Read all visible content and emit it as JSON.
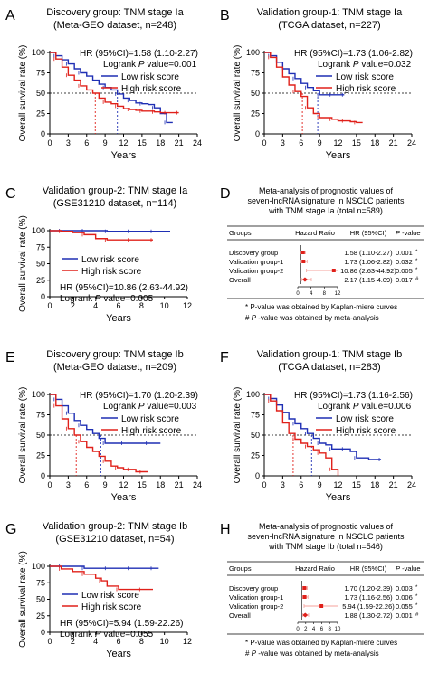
{
  "colors": {
    "low": "#1f2fb4",
    "high": "#e0201a",
    "ci": "#f4a09b",
    "ref": "#000000"
  },
  "panels": [
    {
      "letter": "A",
      "title1": "Discovery group: TNM stage Ia",
      "title2": "(Meta-GEO dataset, n=248)",
      "hr_line": "HR (95%CI)=1.58 (1.10-2.27)",
      "logrank_pre": "Logrank",
      "logrank_p": "P",
      "logrank_post": "value=0.001",
      "legend_low": "Low risk score",
      "legend_high": "High risk score"
    },
    {
      "letter": "B",
      "title1": "Validation group-1: TNM stage Ia",
      "title2": "(TCGA dataset, n=227)",
      "hr_line": "HR (95%CI)=1.73 (1.06-2.82)",
      "logrank_pre": "Logrank",
      "logrank_p": "P",
      "logrank_post": "value=0.032",
      "legend_low": "Low risk score",
      "legend_high": "High risk score"
    },
    {
      "letter": "C",
      "title1": "Validation group-2: TNM stage Ia",
      "title2": "(GSE31210 dataset, n=114)",
      "hr_line": "HR (95%CI)=10.86 (2.63-44.92)",
      "logrank_pre": "Logrank",
      "logrank_p": "P",
      "logrank_post": "value=0.005",
      "legend_low": "Low risk score",
      "legend_high": "High risk score"
    },
    {
      "letter": "E",
      "title1": "Discovery group: TNM stage Ib",
      "title2": "(Meta-GEO dataset, n=209)",
      "hr_line": "HR (95%CI)=1.70 (1.20-2.39)",
      "logrank_pre": "Logrank",
      "logrank_p": "P",
      "logrank_post": "value=0.003",
      "legend_low": "Low risk score",
      "legend_high": "High risk score"
    },
    {
      "letter": "F",
      "title1": "Validation group-1: TNM stage Ib",
      "title2": "(TCGA dataset, n=283)",
      "hr_line": "HR (95%CI)=1.73 (1.16-2.56)",
      "logrank_pre": "Logrank",
      "logrank_p": "P",
      "logrank_post": "value=0.006",
      "legend_low": "Low risk score",
      "legend_high": "High risk score"
    },
    {
      "letter": "G",
      "title1": "Validation group-2: TNM stage Ib",
      "title2": "(GSE31210 dataset, n=54)",
      "hr_line": "HR (95%CI)=5.94 (1.59-22.26)",
      "logrank_pre": "Logrank",
      "logrank_p": "P",
      "logrank_post": "value=0.055",
      "legend_low": "Low risk score",
      "legend_high": "High risk score"
    }
  ],
  "forest": [
    {
      "letter": "D",
      "title1": "Meta-analysis of prognostic values of",
      "title2": "seven-lncRNA signature in NSCLC patients",
      "title3": "with TNM stage Ia (total n=589)",
      "col_groups": "Groups",
      "col_hr_plot": "Hazard Ratio",
      "col_hr": "HR (95%CI)",
      "col_p_italic": "P",
      "col_p_rest": "-value",
      "rows": [
        {
          "group": "Discovery group",
          "hr_text": "1.58 (1.10-2.27)",
          "p": "0.001",
          "mark": "*"
        },
        {
          "group": "Validation group-1",
          "hr_text": "1.73 (1.06-2.82)",
          "p": "0.032",
          "mark": "*"
        },
        {
          "group": "Validation group-2",
          "hr_text": "10.86 (2.63-44.92)",
          "p": "0.005",
          "mark": "*"
        },
        {
          "group": "Overall",
          "hr_text": "2.17 (1.15-4.09)",
          "p": "0.017",
          "mark": "#"
        }
      ],
      "note1": "* P-value was obtained by Kaplan-miere curves",
      "note2_mark": "#",
      "note2_p": "P",
      "note2_rest": "-value was obtained by meta-analysis"
    },
    {
      "letter": "H",
      "title1": "Meta-analysis of prognostic values of",
      "title2": "seven-lncRNA signature in NSCLC patients",
      "title3": "with TNM stage Ib (total n=546)",
      "col_groups": "Groups",
      "col_hr_plot": "Hazard Ratio",
      "col_hr": "HR (95%CI)",
      "col_p_italic": "P",
      "col_p_rest": "-value",
      "rows": [
        {
          "group": "Discovery group",
          "hr_text": "1.70 (1.20-2.39)",
          "p": "0.003",
          "mark": "*"
        },
        {
          "group": "Validation group-1",
          "hr_text": "1.73 (1.16-2.56)",
          "p": "0.006",
          "mark": "*"
        },
        {
          "group": "Validation group-2",
          "hr_text": "5.94 (1.59-22.26)",
          "p": "0.055",
          "mark": "*"
        },
        {
          "group": "Overall",
          "hr_text": "1.88 (1.30-2.72)",
          "p": "0.001",
          "mark": "#"
        }
      ],
      "note1": "* P-value was obtained by Kaplan-miere curves",
      "note2_mark": "#",
      "note2_p": "P",
      "note2_rest": "-value was obtained by meta-analysis"
    }
  ],
  "chart_data": [
    {
      "panel": "A",
      "type": "line",
      "title": "Discovery group: TNM stage Ia (Meta-GEO dataset, n=248)",
      "xlabel": "Years",
      "ylabel": "Overall survival rate (%)",
      "xlim": [
        0,
        24
      ],
      "ylim": [
        0,
        100
      ],
      "xticks": [
        0,
        3,
        6,
        9,
        12,
        15,
        18,
        21,
        24
      ],
      "yticks": [
        0,
        25,
        50,
        75,
        100
      ],
      "ref_line_y": 50,
      "legend": "top-right",
      "median_survival": {
        "High risk score": 7.4,
        "Low risk score": 11
      },
      "series": [
        {
          "name": "Low risk score",
          "x": [
            0,
            1,
            2,
            3,
            4,
            5,
            6,
            7,
            8,
            9,
            10,
            11,
            12,
            13,
            14,
            15,
            16,
            17,
            18,
            19,
            20
          ],
          "y": [
            100,
            96,
            91,
            86,
            80,
            75,
            71,
            66,
            61,
            57,
            54,
            49,
            44,
            41,
            38,
            37,
            36,
            32,
            25,
            14,
            14
          ]
        },
        {
          "name": "High risk score",
          "x": [
            0,
            1,
            2,
            3,
            4,
            5,
            6,
            7,
            8,
            9,
            10,
            11,
            12,
            13,
            14,
            15,
            16,
            17,
            18,
            19,
            20,
            21
          ],
          "y": [
            100,
            92,
            82,
            72,
            66,
            59,
            54,
            50,
            44,
            39,
            37,
            34,
            31,
            30,
            29,
            28,
            28,
            27,
            26,
            26,
            26,
            26
          ]
        }
      ]
    },
    {
      "panel": "B",
      "type": "line",
      "title": "Validation group-1: TNM stage Ia (TCGA dataset, n=227)",
      "xlabel": "Years",
      "ylabel": "Overall survival rate (%)",
      "xlim": [
        0,
        24
      ],
      "ylim": [
        0,
        100
      ],
      "xticks": [
        0,
        3,
        6,
        9,
        12,
        15,
        18,
        21,
        24
      ],
      "yticks": [
        0,
        25,
        50,
        75,
        100
      ],
      "ref_line_y": 50,
      "legend": "top-right",
      "median_survival": {
        "High risk score": 6.2,
        "Low risk score": 8.7
      },
      "series": [
        {
          "name": "Low risk score",
          "x": [
            0,
            1,
            2,
            3,
            4,
            5,
            6,
            7,
            8,
            9,
            10,
            11,
            12,
            13
          ],
          "y": [
            100,
            96,
            88,
            80,
            74,
            68,
            62,
            57,
            53,
            48,
            48,
            48,
            48,
            48
          ]
        },
        {
          "name": "High risk score",
          "x": [
            0,
            1,
            2,
            3,
            4,
            5,
            6,
            7,
            8,
            9,
            10,
            11,
            12,
            13,
            14,
            15,
            16
          ],
          "y": [
            100,
            94,
            82,
            70,
            60,
            52,
            46,
            32,
            25,
            20,
            20,
            18,
            16,
            16,
            15,
            14,
            14
          ]
        }
      ]
    },
    {
      "panel": "C",
      "type": "line",
      "title": "Validation group-2: TNM stage Ia (GSE31210 dataset, n=114)",
      "xlabel": "Years",
      "ylabel": "Overall survival rate (%)",
      "xlim": [
        0,
        12
      ],
      "ylim": [
        0,
        100
      ],
      "xticks": [
        0,
        2,
        4,
        6,
        8,
        10,
        12
      ],
      "yticks": [
        0,
        25,
        50,
        75,
        100
      ],
      "legend": "lower-left",
      "series": [
        {
          "name": "Low risk score",
          "x": [
            0,
            1,
            2,
            3,
            4,
            5,
            6,
            7,
            8,
            9,
            10.5
          ],
          "y": [
            100,
            100,
            100,
            100,
            100,
            99,
            99,
            99,
            99,
            99,
            99
          ]
        },
        {
          "name": "High risk score",
          "x": [
            0,
            1,
            2,
            3,
            4,
            5,
            6,
            7,
            8,
            9
          ],
          "y": [
            100,
            99,
            97,
            94,
            88,
            86,
            86,
            86,
            86,
            86
          ]
        }
      ]
    },
    {
      "panel": "E",
      "type": "line",
      "title": "Discovery group: TNM stage Ib (Meta-GEO dataset, n=209)",
      "xlabel": "Years",
      "ylabel": "Overall survival rate (%)",
      "xlim": [
        0,
        24
      ],
      "ylim": [
        0,
        100
      ],
      "xticks": [
        0,
        3,
        6,
        9,
        12,
        15,
        18,
        21,
        24
      ],
      "yticks": [
        0,
        25,
        50,
        75,
        100
      ],
      "ref_line_y": 50,
      "legend": "top-right",
      "median_survival": {
        "High risk score": 4.3,
        "Low risk score": 8.3
      },
      "series": [
        {
          "name": "Low risk score",
          "x": [
            0,
            1,
            2,
            3,
            4,
            5,
            6,
            7,
            8,
            9,
            10,
            12,
            14,
            16,
            18
          ],
          "y": [
            100,
            94,
            86,
            77,
            68,
            62,
            57,
            52,
            46,
            40,
            40,
            40,
            40,
            40,
            40
          ]
        },
        {
          "name": "High risk score",
          "x": [
            0,
            1,
            2,
            3,
            4,
            5,
            6,
            7,
            8,
            9,
            10,
            11,
            12,
            13,
            14,
            15,
            16
          ],
          "y": [
            100,
            86,
            70,
            58,
            50,
            42,
            35,
            30,
            24,
            18,
            12,
            10,
            8,
            8,
            5,
            5,
            5
          ]
        }
      ]
    },
    {
      "panel": "F",
      "type": "line",
      "title": "Validation group-1: TNM stage Ib (TCGA dataset, n=283)",
      "xlabel": "Years",
      "ylabel": "Overall survival rate (%)",
      "xlim": [
        0,
        24
      ],
      "ylim": [
        0,
        100
      ],
      "xticks": [
        0,
        3,
        6,
        9,
        12,
        15,
        18,
        21,
        24
      ],
      "yticks": [
        0,
        25,
        50,
        75,
        100
      ],
      "ref_line_y": 50,
      "legend": "top-right",
      "median_survival": {
        "High risk score": 4.7,
        "Low risk score": 7.7
      },
      "series": [
        {
          "name": "Low risk score",
          "x": [
            0,
            1,
            2,
            3,
            4,
            5,
            6,
            7,
            8,
            9,
            10,
            11,
            12,
            13,
            14,
            15,
            17,
            19
          ],
          "y": [
            100,
            95,
            87,
            78,
            70,
            64,
            58,
            52,
            46,
            40,
            38,
            33,
            33,
            33,
            30,
            22,
            20,
            20
          ]
        },
        {
          "name": "High risk score",
          "x": [
            0,
            1,
            2,
            3,
            4,
            5,
            6,
            7,
            8,
            9,
            10,
            11,
            12
          ],
          "y": [
            100,
            92,
            80,
            65,
            52,
            45,
            40,
            36,
            32,
            28,
            22,
            8,
            0
          ]
        }
      ]
    },
    {
      "panel": "G",
      "type": "line",
      "title": "Validation group-2: TNM stage Ib (GSE31210 dataset, n=54)",
      "xlabel": "Years",
      "ylabel": "Overall survival rate (%)",
      "xlim": [
        0,
        12
      ],
      "ylim": [
        0,
        100
      ],
      "xticks": [
        0,
        2,
        4,
        6,
        8,
        10,
        12
      ],
      "yticks": [
        0,
        25,
        50,
        75,
        100
      ],
      "legend": "lower-left",
      "series": [
        {
          "name": "Low risk score",
          "x": [
            0,
            1,
            2,
            3,
            4,
            5,
            6,
            7,
            8,
            9,
            9.5
          ],
          "y": [
            100,
            100,
            100,
            97,
            97,
            97,
            97,
            97,
            97,
            97,
            97
          ]
        },
        {
          "name": "High risk score",
          "x": [
            0,
            1,
            2,
            3,
            4,
            4.5,
            5,
            6,
            7,
            8,
            9
          ],
          "y": [
            100,
            96,
            92,
            88,
            82,
            78,
            70,
            65,
            65,
            65,
            65
          ]
        }
      ]
    },
    {
      "panel": "D",
      "type": "scatter",
      "title": "Meta-analysis of prognostic values of seven-lncRNA signature in NSCLC patients with TNM stage Ia (total n=589)",
      "xlabel": "Hazard Ratio",
      "xlim": [
        0,
        12
      ],
      "xticks": [
        0,
        4,
        8,
        12
      ],
      "categories": [
        "Discovery group",
        "Validation group-1",
        "Validation group-2",
        "Overall"
      ],
      "values": [
        1.58,
        1.73,
        10.86,
        2.17
      ],
      "ci_low": [
        1.1,
        1.06,
        2.63,
        1.15
      ],
      "ci_high": [
        2.27,
        2.82,
        44.92,
        4.09
      ],
      "p_values": [
        0.001,
        0.032,
        0.005,
        0.017
      ]
    },
    {
      "panel": "H",
      "type": "scatter",
      "title": "Meta-analysis of prognostic values of seven-lncRNA signature in NSCLC patients with TNM stage Ib (total n=546)",
      "xlabel": "Hazard Ratio",
      "xlim": [
        0,
        10
      ],
      "xticks": [
        0,
        2,
        4,
        6,
        8,
        10
      ],
      "categories": [
        "Discovery group",
        "Validation group-1",
        "Validation group-2",
        "Overall"
      ],
      "values": [
        1.7,
        1.73,
        5.94,
        1.88
      ],
      "ci_low": [
        1.2,
        1.16,
        1.59,
        1.3
      ],
      "ci_high": [
        2.39,
        2.56,
        22.26,
        2.72
      ],
      "p_values": [
        0.003,
        0.006,
        0.055,
        0.001
      ]
    }
  ]
}
